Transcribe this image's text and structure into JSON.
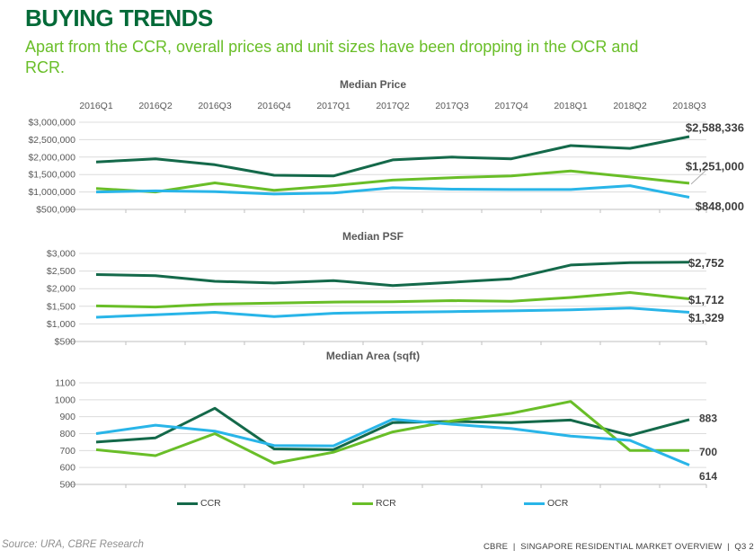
{
  "page": {
    "title": "BUYING TRENDS",
    "subtitle": "Apart from the CCR, overall prices and unit sizes have been dropping in the OCR and\nRCR.",
    "footer_source": "Source: URA, CBRE Research",
    "footer_brand": "CBRE  |  SINGAPORE RESIDENTIAL MARKET OVERVIEW  |  Q3 2"
  },
  "colors": {
    "title_green": "#046A38",
    "subtitle_green": "#69BE28",
    "ccr": "#14694A",
    "rcr": "#69BE28",
    "ocr": "#29B5E8",
    "grid": "#DCDCDC",
    "axis_line": "#BFBFBF",
    "axis_text": "#595959",
    "end_label_text": "#404040"
  },
  "legend": [
    {
      "label": "CCR"
    },
    {
      "label": "RCR"
    },
    {
      "label": "OCR"
    }
  ],
  "chart_data": [
    {
      "type": "line",
      "title": "Median Price",
      "categories": [
        "2016Q1",
        "2016Q2",
        "2016Q3",
        "2016Q4",
        "2017Q1",
        "2017Q2",
        "2017Q3",
        "2017Q4",
        "2018Q1",
        "2018Q2",
        "2018Q3"
      ],
      "show_x_labels": true,
      "ylim": [
        500000,
        3000000
      ],
      "ytick_labels": [
        "$3,000,000",
        "$2,500,000",
        "$2,000,000",
        "$1,500,000",
        "$1,000,000",
        "$500,000"
      ],
      "grid": true,
      "legend_position": "bottom-shared",
      "series": [
        {
          "name": "CCR",
          "end_label": "$2,588,336",
          "values": [
            1860000,
            1950000,
            1780000,
            1480000,
            1460000,
            1920000,
            2000000,
            1950000,
            2330000,
            2250000,
            2588336
          ]
        },
        {
          "name": "RCR",
          "end_label": "$1,251,000",
          "values": [
            1100000,
            1000000,
            1260000,
            1050000,
            1180000,
            1340000,
            1410000,
            1460000,
            1600000,
            1430000,
            1251000
          ]
        },
        {
          "name": "OCR",
          "end_label": "$848,000",
          "values": [
            1000000,
            1030000,
            1010000,
            940000,
            970000,
            1120000,
            1080000,
            1070000,
            1070000,
            1180000,
            848000
          ]
        }
      ]
    },
    {
      "type": "line",
      "title": "Median PSF",
      "categories": [
        "2016Q1",
        "2016Q2",
        "2016Q3",
        "2016Q4",
        "2017Q1",
        "2017Q2",
        "2017Q3",
        "2017Q4",
        "2018Q1",
        "2018Q2",
        "2018Q3"
      ],
      "show_x_labels": false,
      "ylim": [
        500,
        3000
      ],
      "ytick_labels": [
        "$3,000",
        "$2,500",
        "$2,000",
        "$1,500",
        "$1,000",
        "$500"
      ],
      "grid": true,
      "legend_position": "bottom-shared",
      "series": [
        {
          "name": "CCR",
          "end_label": "$2,752",
          "values": [
            2400,
            2370,
            2210,
            2160,
            2230,
            2090,
            2180,
            2280,
            2670,
            2740,
            2752
          ]
        },
        {
          "name": "RCR",
          "end_label": "$1,712",
          "values": [
            1510,
            1480,
            1560,
            1590,
            1620,
            1630,
            1660,
            1640,
            1750,
            1890,
            1712
          ]
        },
        {
          "name": "OCR",
          "end_label": "$1,329",
          "values": [
            1190,
            1260,
            1330,
            1210,
            1300,
            1330,
            1350,
            1370,
            1400,
            1450,
            1329
          ]
        }
      ]
    },
    {
      "type": "line",
      "title": "Median Area (sqft)",
      "categories": [
        "2016Q1",
        "2016Q2",
        "2016Q3",
        "2016Q4",
        "2017Q1",
        "2017Q2",
        "2017Q3",
        "2017Q4",
        "2018Q1",
        "2018Q2",
        "2018Q3"
      ],
      "show_x_labels": false,
      "ylim": [
        500,
        1100
      ],
      "ytick_labels": [
        "1100",
        "1000",
        "900",
        "800",
        "700",
        "600",
        "500"
      ],
      "grid": true,
      "legend_position": "bottom-shared",
      "series": [
        {
          "name": "CCR",
          "end_label": "883",
          "values": [
            750,
            775,
            950,
            710,
            705,
            865,
            872,
            865,
            880,
            790,
            883
          ]
        },
        {
          "name": "RCR",
          "end_label": "700",
          "values": [
            705,
            670,
            800,
            625,
            690,
            810,
            875,
            920,
            990,
            700,
            700
          ]
        },
        {
          "name": "OCR",
          "end_label": "614",
          "values": [
            800,
            850,
            815,
            730,
            728,
            885,
            855,
            830,
            785,
            760,
            614
          ]
        }
      ]
    }
  ]
}
